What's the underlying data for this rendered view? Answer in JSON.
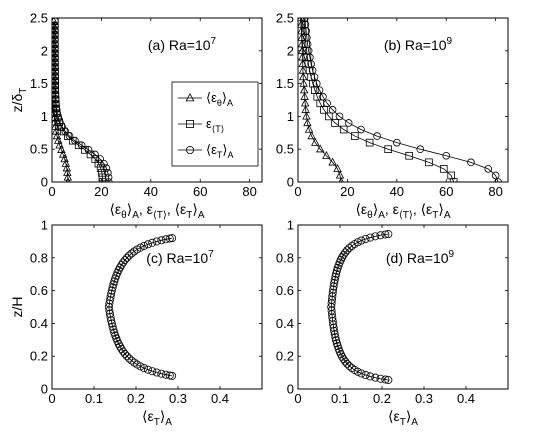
{
  "chart_data": [
    {
      "type": "line",
      "panel_label": "(a) Ra=10",
      "panel_label_exp": "7",
      "ylabel_main": "z/δ",
      "ylabel_sub": "T",
      "xlabel_parts": [
        [
          "⟨ε",
          null
        ],
        [
          "θ",
          "sub"
        ],
        [
          "⟩",
          null
        ],
        [
          "A",
          "sub"
        ],
        [
          ", ε",
          null
        ],
        [
          "⟨T⟩",
          "sub"
        ],
        [
          ", ⟨ε",
          null
        ],
        [
          "T",
          "sub"
        ],
        [
          "⟩",
          null
        ],
        [
          "A",
          "sub"
        ]
      ],
      "xlim": [
        0,
        85
      ],
      "ylim": [
        0,
        2.5
      ],
      "xticks": [
        0,
        20,
        40,
        60,
        80
      ],
      "yticks": [
        0,
        0.5,
        1,
        1.5,
        2,
        2.5
      ],
      "ytick_labels": [
        "0",
        "0.5",
        "1",
        "1.5",
        "2",
        "2.5"
      ],
      "legend": {
        "position": "right",
        "entries": [
          {
            "marker": "triangle",
            "parts": [
              [
                "⟨ε",
                null
              ],
              [
                "θ",
                "sub"
              ],
              [
                "⟩",
                null
              ],
              [
                "A",
                "sub"
              ]
            ]
          },
          {
            "marker": "square",
            "parts": [
              [
                "ε",
                null
              ],
              [
                "⟨T⟩",
                "sub"
              ]
            ]
          },
          {
            "marker": "circle",
            "parts": [
              [
                "⟨ε",
                null
              ],
              [
                "T",
                "sub"
              ],
              [
                "⟩",
                null
              ],
              [
                "A",
                "sub"
              ]
            ]
          }
        ]
      },
      "series": [
        {
          "marker": "triangle",
          "x": [
            6.5,
            6.4,
            6.2,
            6.0,
            5.6,
            5.1,
            4.5,
            3.8,
            3.1,
            2.5,
            2.0,
            1.6,
            1.3,
            1.1,
            1.0,
            0.9,
            0.85,
            0.8,
            0.78,
            0.76,
            0.75,
            0.74,
            0.73,
            0.72,
            0.72,
            0.71,
            0.71,
            0.7,
            0.7,
            0.7,
            0.7,
            0.7,
            0.7,
            0.7,
            0.7,
            0.7
          ],
          "y": [
            0,
            0.07,
            0.14,
            0.21,
            0.28,
            0.35,
            0.42,
            0.49,
            0.56,
            0.63,
            0.7,
            0.77,
            0.84,
            0.91,
            0.98,
            1.05,
            1.12,
            1.19,
            1.26,
            1.33,
            1.4,
            1.47,
            1.54,
            1.61,
            1.68,
            1.75,
            1.82,
            1.89,
            1.96,
            2.03,
            2.1,
            2.17,
            2.24,
            2.31,
            2.38,
            2.45
          ]
        },
        {
          "marker": "square",
          "x": [
            20.5,
            20.4,
            20.2,
            19.7,
            18.8,
            17.5,
            15.6,
            13.3,
            10.8,
            8.4,
            6.4,
            4.8,
            3.7,
            2.9,
            2.3,
            1.9,
            1.65,
            1.5,
            1.4,
            1.33,
            1.28,
            1.24,
            1.21,
            1.19,
            1.17,
            1.16,
            1.15,
            1.14,
            1.13,
            1.13,
            1.12,
            1.12,
            1.12,
            1.12,
            1.12,
            1.12
          ],
          "y": [
            0,
            0.07,
            0.14,
            0.21,
            0.28,
            0.35,
            0.42,
            0.49,
            0.56,
            0.63,
            0.7,
            0.77,
            0.84,
            0.91,
            0.98,
            1.05,
            1.12,
            1.19,
            1.26,
            1.33,
            1.4,
            1.47,
            1.54,
            1.61,
            1.68,
            1.75,
            1.82,
            1.89,
            1.96,
            2.03,
            2.1,
            2.17,
            2.24,
            2.31,
            2.38,
            2.45
          ]
        },
        {
          "marker": "circle",
          "x": [
            23.0,
            22.9,
            22.6,
            22.0,
            21.0,
            19.5,
            17.4,
            14.8,
            12.0,
            9.3,
            7.1,
            5.4,
            4.1,
            3.2,
            2.6,
            2.1,
            1.8,
            1.6,
            1.48,
            1.4,
            1.34,
            1.3,
            1.27,
            1.25,
            1.23,
            1.22,
            1.21,
            1.2,
            1.2,
            1.19,
            1.19,
            1.19,
            1.19,
            1.19,
            1.19,
            1.19
          ],
          "y": [
            0,
            0.07,
            0.14,
            0.21,
            0.28,
            0.35,
            0.42,
            0.49,
            0.56,
            0.63,
            0.7,
            0.77,
            0.84,
            0.91,
            0.98,
            1.05,
            1.12,
            1.19,
            1.26,
            1.33,
            1.4,
            1.47,
            1.54,
            1.61,
            1.68,
            1.75,
            1.82,
            1.89,
            1.96,
            2.03,
            2.1,
            2.17,
            2.24,
            2.31,
            2.38,
            2.45
          ]
        }
      ]
    },
    {
      "type": "line",
      "panel_label": "(b) Ra=10",
      "panel_label_exp": "9",
      "xlabel_parts": [
        [
          "⟨ε",
          null
        ],
        [
          "θ",
          "sub"
        ],
        [
          "⟩",
          null
        ],
        [
          "A",
          "sub"
        ],
        [
          ", ε",
          null
        ],
        [
          "⟨T⟩",
          "sub"
        ],
        [
          ", ⟨ε",
          null
        ],
        [
          "T",
          "sub"
        ],
        [
          "⟩",
          null
        ],
        [
          "A",
          "sub"
        ]
      ],
      "xlim": [
        0,
        85
      ],
      "ylim": [
        0,
        2.5
      ],
      "xticks": [
        0,
        20,
        40,
        60,
        80
      ],
      "yticks": [
        0,
        0.5,
        1,
        1.5,
        2,
        2.5
      ],
      "ytick_labels": [
        "0",
        "0.5",
        "1",
        "1.5",
        "2",
        "2.5"
      ],
      "series": [
        {
          "marker": "triangle",
          "x": [
            17.5,
            17.0,
            16.0,
            14.0,
            11.5,
            9.0,
            7.0,
            5.5,
            4.5,
            3.8,
            3.4,
            3.1,
            2.9,
            2.7,
            2.5,
            2.3,
            2.1,
            2.0,
            1.9,
            1.8,
            1.7,
            1.6,
            1.5,
            1.4,
            1.3,
            1.2
          ],
          "y": [
            0,
            0.1,
            0.2,
            0.3,
            0.4,
            0.5,
            0.6,
            0.7,
            0.8,
            0.9,
            1.0,
            1.1,
            1.2,
            1.3,
            1.4,
            1.5,
            1.6,
            1.7,
            1.8,
            1.9,
            2.0,
            2.1,
            2.2,
            2.3,
            2.4,
            2.5
          ]
        },
        {
          "marker": "square",
          "x": [
            63.0,
            62.0,
            59.0,
            53.0,
            45.0,
            36.5,
            29.0,
            23.0,
            18.5,
            15.0,
            12.5,
            10.5,
            9.0,
            7.8,
            6.8,
            6.0,
            5.3,
            4.7,
            4.2,
            3.8,
            3.5,
            3.2,
            3.0,
            2.8,
            2.6,
            2.4
          ],
          "y": [
            0,
            0.1,
            0.2,
            0.3,
            0.4,
            0.5,
            0.6,
            0.7,
            0.8,
            0.9,
            1.0,
            1.1,
            1.2,
            1.3,
            1.4,
            1.5,
            1.6,
            1.7,
            1.8,
            1.9,
            2.0,
            2.1,
            2.2,
            2.3,
            2.4,
            2.5
          ]
        },
        {
          "marker": "circle",
          "x": [
            81.0,
            80.0,
            77.0,
            70.0,
            60.0,
            49.5,
            40.0,
            32.0,
            25.5,
            20.5,
            16.8,
            14.0,
            11.8,
            10.1,
            8.7,
            7.6,
            6.7,
            5.9,
            5.3,
            4.8,
            4.3,
            3.9,
            3.6,
            3.3,
            3.0,
            2.8
          ],
          "y": [
            0,
            0.1,
            0.2,
            0.3,
            0.4,
            0.5,
            0.6,
            0.7,
            0.8,
            0.9,
            1.0,
            1.1,
            1.2,
            1.3,
            1.4,
            1.5,
            1.6,
            1.7,
            1.8,
            1.9,
            2.0,
            2.1,
            2.2,
            2.3,
            2.4,
            2.5
          ]
        }
      ]
    },
    {
      "type": "line",
      "panel_label": "(c) Ra=10",
      "panel_label_exp": "7",
      "ylabel_main": "z/H",
      "xlabel_parts": [
        [
          "⟨ε",
          null
        ],
        [
          "T",
          "sub"
        ],
        [
          "⟩",
          null
        ],
        [
          "A",
          "sub"
        ]
      ],
      "xlim": [
        0,
        0.5
      ],
      "ylim": [
        0,
        1
      ],
      "xticks": [
        0,
        0.1,
        0.2,
        0.3,
        0.4
      ],
      "xtick_labels": [
        "0",
        "0.1",
        "0.2",
        "0.3",
        "0.4"
      ],
      "yticks": [
        0,
        0.2,
        0.4,
        0.6,
        0.8,
        1
      ],
      "ytick_labels": [
        "0",
        "0.2",
        "0.4",
        "0.6",
        "0.8",
        "1"
      ],
      "profile": {
        "xmin": 0.082,
        "xmax": 0.48,
        "center": 0.5,
        "yend_low": 0.08,
        "yend_high": 0.92,
        "sample_shape": 3.0
      },
      "series": [
        {
          "marker": "circle"
        }
      ]
    },
    {
      "type": "line",
      "panel_label": "(d) Ra=10",
      "panel_label_exp": "9",
      "xlabel_parts": [
        [
          "⟨ε",
          null
        ],
        [
          "T",
          "sub"
        ],
        [
          "⟩",
          null
        ],
        [
          "A",
          "sub"
        ]
      ],
      "xlim": [
        0,
        0.5
      ],
      "ylim": [
        0,
        1
      ],
      "xticks": [
        0,
        0.1,
        0.2,
        0.3,
        0.4
      ],
      "xtick_labels": [
        "0",
        "0.1",
        "0.2",
        "0.3",
        "0.4"
      ],
      "yticks": [
        0,
        0.2,
        0.4,
        0.6,
        0.8,
        1
      ],
      "ytick_labels": [
        "0",
        "0.2",
        "0.4",
        "0.6",
        "0.8",
        "1"
      ],
      "profile": {
        "xmin": 0.048,
        "xmax": 0.5,
        "center": 0.5,
        "yend_low": 0.055,
        "yend_high": 0.945,
        "sample_shape": 6.0
      },
      "series": [
        {
          "marker": "circle"
        }
      ]
    }
  ]
}
